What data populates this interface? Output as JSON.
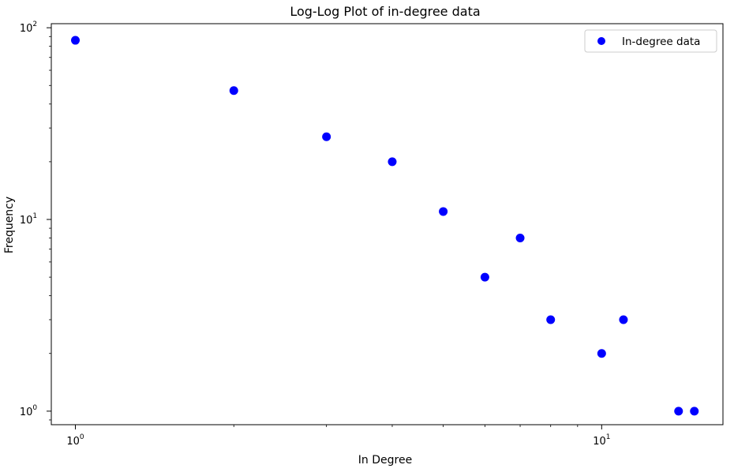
{
  "chart_data": {
    "type": "scatter",
    "title": "Log-Log Plot of in-degree data",
    "xlabel": "In Degree",
    "ylabel": "Frequency",
    "x_scale": "log",
    "y_scale": "log",
    "xlim": [
      0.9,
      17
    ],
    "ylim": [
      0.85,
      105
    ],
    "grid": false,
    "legend_position": "top-right",
    "colors": {
      "marker": "#0000ff",
      "axis": "#000000",
      "legend_border": "#cccccc"
    },
    "x_ticks": [
      {
        "base": "10",
        "exp": "0",
        "value": 1
      },
      {
        "base": "10",
        "exp": "1",
        "value": 10
      }
    ],
    "y_ticks": [
      {
        "base": "10",
        "exp": "0",
        "value": 1
      },
      {
        "base": "10",
        "exp": "1",
        "value": 10
      },
      {
        "base": "10",
        "exp": "2",
        "value": 100
      }
    ],
    "series": [
      {
        "name": "In-degree data",
        "x": [
          1,
          2,
          3,
          4,
          5,
          6,
          7,
          8,
          10,
          11,
          14,
          15
        ],
        "y": [
          86,
          47,
          27,
          20,
          11,
          5,
          8,
          3,
          2,
          3,
          1,
          1
        ]
      }
    ]
  }
}
